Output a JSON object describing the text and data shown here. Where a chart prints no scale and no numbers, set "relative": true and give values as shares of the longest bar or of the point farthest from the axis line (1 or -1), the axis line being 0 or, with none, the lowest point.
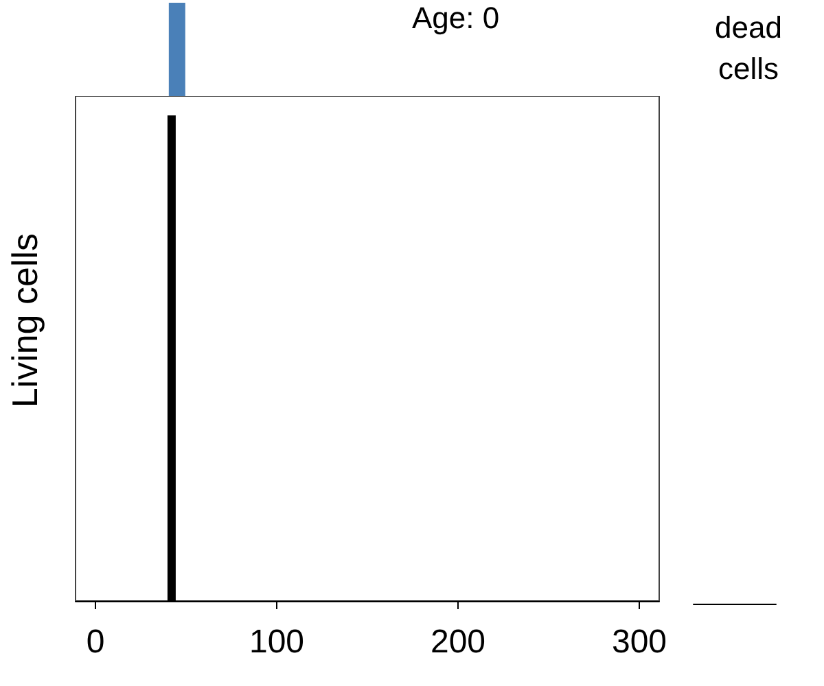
{
  "chart_data": [
    {
      "type": "bar",
      "relative": true,
      "x": [
        45
      ],
      "values": [
        1
      ],
      "color": "#4a80b8",
      "xlim": [
        -11,
        311
      ],
      "tick_labels": false,
      "annotations": [
        "Age: 0"
      ]
    },
    {
      "type": "bar",
      "relative": true,
      "x": [
        42
      ],
      "values": [
        1
      ],
      "color": "#000000",
      "xlim": [
        -11,
        311
      ],
      "xticks": [
        0,
        100,
        200,
        300
      ],
      "ylabel": "Living cells",
      "tick_labels": "x",
      "grid": false
    },
    {
      "type": "other",
      "title": "dead cells",
      "categories": [
        null
      ]
    }
  ]
}
